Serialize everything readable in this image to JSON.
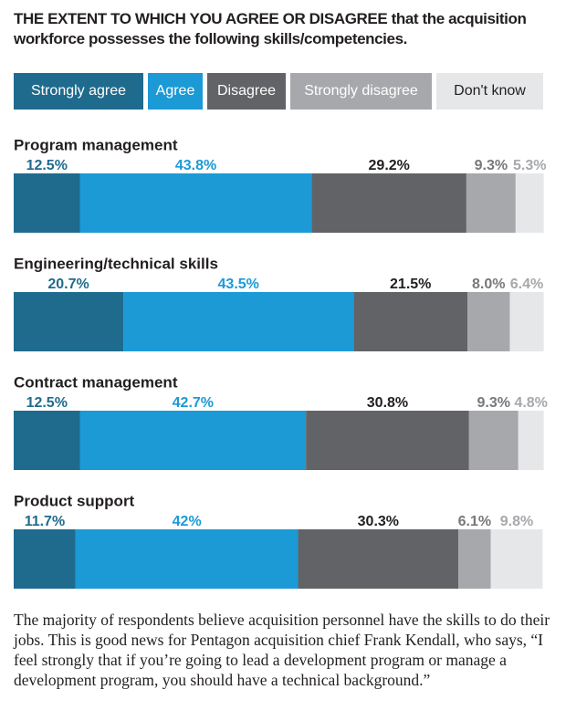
{
  "chart_data": {
    "type": "bar",
    "orientation": "horizontal",
    "stacked": true,
    "title": "THE EXTENT TO WHICH YOU AGREE OR DISAGREE that the acquisition workforce possesses the following skills/competencies.",
    "categories": [
      "Program management",
      "Engineering/technical skills",
      "Contract management",
      "Product support"
    ],
    "xlim": [
      0,
      100
    ],
    "series": [
      {
        "name": "Strongly agree",
        "color": "#1f6b8e",
        "values": [
          12.5,
          20.7,
          12.5,
          11.7
        ],
        "value_labels": [
          "12.5%",
          "20.7%",
          "12.5%",
          "11.7%"
        ]
      },
      {
        "name": "Agree",
        "color": "#1b9ad6",
        "values": [
          43.8,
          43.5,
          42.7,
          42
        ],
        "value_labels": [
          "43.8%",
          "43.5%",
          "42.7%",
          "42%"
        ]
      },
      {
        "name": "Disagree",
        "color": "#626366",
        "values": [
          29.2,
          21.5,
          30.8,
          30.3
        ],
        "value_labels": [
          "29.2%",
          "21.5%",
          "30.8%",
          "30.3%"
        ]
      },
      {
        "name": "Strongly disagree",
        "color": "#a7a8ab",
        "values": [
          9.3,
          8.0,
          9.3,
          6.1
        ],
        "value_labels": [
          "9.3%",
          "8.0%",
          "9.3%",
          "6.1%"
        ]
      },
      {
        "name": "Don't know",
        "color": "#e6e7e8",
        "values": [
          5.3,
          6.4,
          4.8,
          9.8
        ],
        "value_labels": [
          "5.3%",
          "6.4%",
          "4.8%",
          "9.8%"
        ]
      }
    ],
    "caption": "The majority of respondents believe acquisition personnel have the skills to do their jobs. This is good news for Pentagon acquisition chief Frank Kendall, who says, “I feel strongly that if you’re going to lead a development program or manage a development program, you should have a technical background.”"
  }
}
